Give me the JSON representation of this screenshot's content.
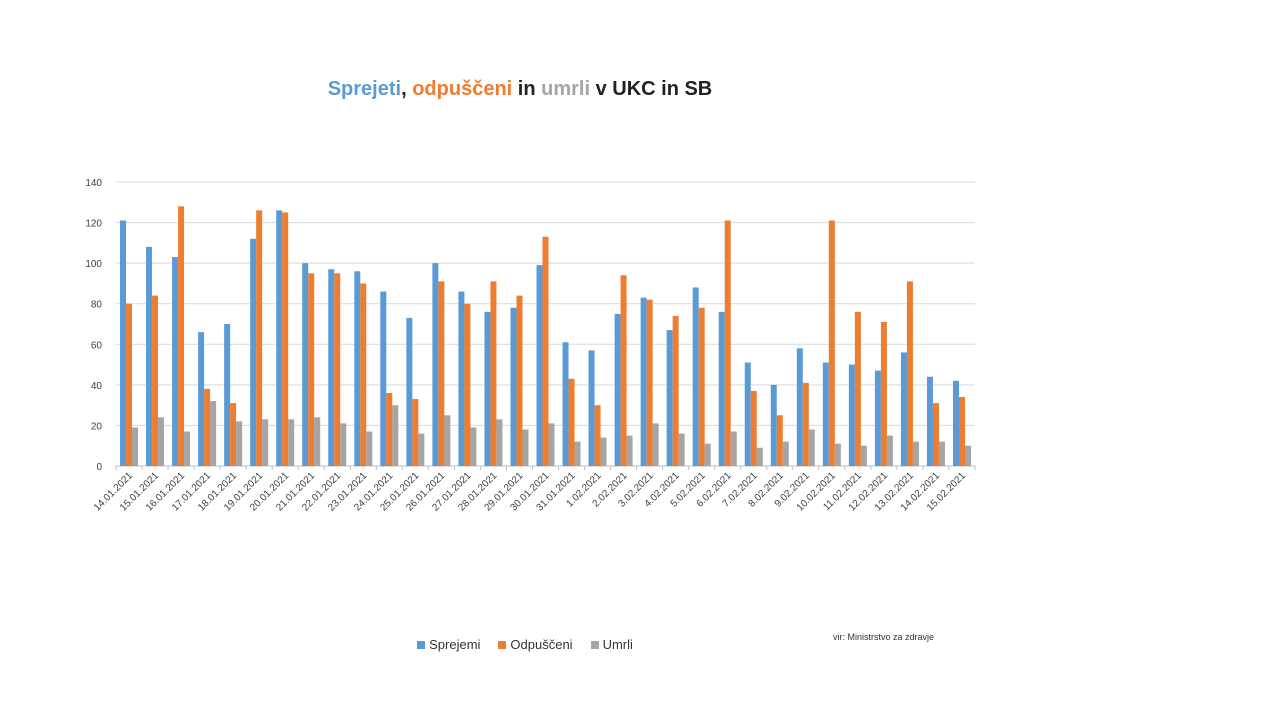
{
  "title": {
    "part1": "Sprejeti",
    "sep1": ", ",
    "part2": "odpuščeni",
    "sep2": " in ",
    "part3": "umrli",
    "rest": " v UKC in SB"
  },
  "colors": {
    "sprejemi": "#5B9BD5",
    "odpusceni": "#ED7D31",
    "umrli": "#A5A5A5",
    "title_text": "#222222"
  },
  "source": "vir: Ministrstvo za zdravje",
  "chart_data": {
    "type": "bar",
    "categories": [
      "14.01.2021",
      "15.01.2021",
      "16.01.2021",
      "17.01.2021",
      "18.01.2021",
      "19.01.2021",
      "20.01.2021",
      "21.01.2021",
      "22.01.2021",
      "23.01.2021",
      "24.01.2021",
      "25.01.2021",
      "26.01.2021",
      "27.01.2021",
      "28.01.2021",
      "29.01.2021",
      "30.01.2021",
      "31.01.2021",
      "1.02.2021",
      "2.02.2021",
      "3.02.2021",
      "4.02.2021",
      "5.02.2021",
      "6.02.2021",
      "7.02.2021",
      "8.02.2021",
      "9.02.2021",
      "10.02.2021",
      "11.02.2021",
      "12.02.2021",
      "13.02.2021",
      "14.02.2021",
      "15.02.2021"
    ],
    "series": [
      {
        "name": "Sprejemi",
        "color": "#5B9BD5",
        "values": [
          121,
          108,
          103,
          66,
          70,
          112,
          126,
          100,
          97,
          96,
          86,
          73,
          100,
          86,
          76,
          78,
          99,
          61,
          57,
          75,
          83,
          67,
          88,
          76,
          51,
          40,
          58,
          51,
          50,
          47,
          56,
          44,
          42
        ]
      },
      {
        "name": "Odpuščeni",
        "color": "#ED7D31",
        "values": [
          80,
          84,
          128,
          38,
          31,
          126,
          125,
          95,
          95,
          90,
          36,
          33,
          91,
          80,
          91,
          84,
          113,
          43,
          30,
          94,
          82,
          74,
          78,
          121,
          37,
          25,
          41,
          121,
          76,
          71,
          91,
          31,
          34
        ]
      },
      {
        "name": "Umrli",
        "color": "#A5A5A5",
        "values": [
          19,
          24,
          17,
          32,
          22,
          23,
          23,
          24,
          21,
          17,
          30,
          16,
          25,
          19,
          23,
          18,
          21,
          12,
          14,
          15,
          21,
          16,
          11,
          17,
          9,
          12,
          18,
          11,
          10,
          15,
          12,
          12,
          10
        ]
      }
    ],
    "y_ticks": [
      "0",
      "20",
      "40",
      "60",
      "80",
      "100",
      "120",
      "140"
    ],
    "ylim": [
      0,
      140
    ],
    "grid": true,
    "legend_position": "bottom"
  }
}
